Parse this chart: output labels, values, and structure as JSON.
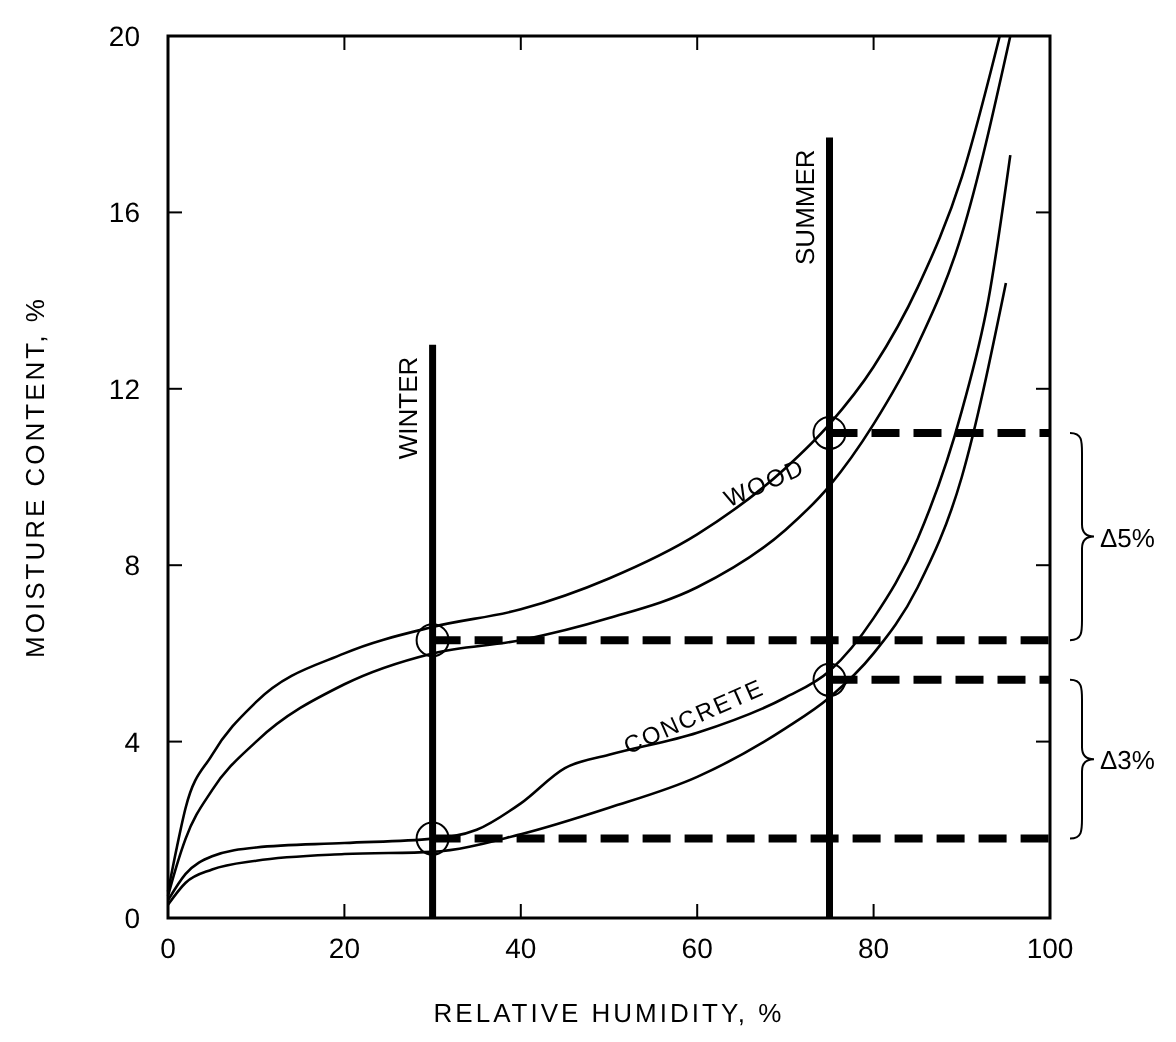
{
  "chart_data": {
    "type": "line",
    "xlabel": "RELATIVE HUMIDITY, %",
    "ylabel": "MOISTURE CONTENT, %",
    "xlim": [
      0,
      100
    ],
    "ylim": [
      0,
      20
    ],
    "xticks": [
      0,
      20,
      40,
      60,
      80,
      100
    ],
    "yticks": [
      0,
      4,
      8,
      12,
      16,
      20
    ],
    "grid": false,
    "series": [
      {
        "color": "#000000",
        "x": [
          0,
          1,
          2,
          5,
          10,
          20,
          30,
          40,
          50,
          60,
          70,
          75,
          80,
          85,
          90,
          94.3
        ],
        "values": [
          0.6,
          1.6,
          2.5,
          3.7,
          4.9,
          6.0,
          6.6,
          7.0,
          7.7,
          8.7,
          10.2,
          11.2,
          12.5,
          14.3,
          16.8,
          20
        ]
      },
      {
        "color": "#000000",
        "x": [
          0,
          1,
          2,
          5,
          10,
          20,
          30,
          40,
          50,
          60,
          70,
          75,
          80,
          85,
          90,
          95.5
        ],
        "values": [
          0.5,
          1.2,
          1.8,
          2.9,
          4.0,
          5.3,
          6.0,
          6.3,
          6.8,
          7.5,
          8.8,
          9.8,
          11.2,
          13.0,
          15.5,
          20
        ]
      },
      {
        "color": "#000000",
        "x": [
          0,
          2,
          5,
          10,
          20,
          30,
          35,
          40,
          45,
          50,
          60,
          70,
          75,
          80,
          85,
          90,
          93,
          95.5
        ],
        "values": [
          0.4,
          1.0,
          1.4,
          1.6,
          1.7,
          1.8,
          2.0,
          2.6,
          3.4,
          3.7,
          4.2,
          5.0,
          5.6,
          6.8,
          8.6,
          11.5,
          14.0,
          17.3
        ]
      },
      {
        "color": "#000000",
        "x": [
          0,
          2,
          5,
          10,
          20,
          30,
          40,
          50,
          60,
          70,
          75,
          80,
          85,
          90,
          95
        ],
        "values": [
          0.3,
          0.8,
          1.1,
          1.3,
          1.45,
          1.5,
          1.9,
          2.5,
          3.2,
          4.3,
          5.0,
          6.0,
          7.5,
          10.0,
          14.4
        ]
      },
      {
        "name": "WINTER",
        "color": "#000000",
        "x": [
          30,
          30
        ],
        "values": [
          0,
          13
        ]
      },
      {
        "name": "SUMMER",
        "color": "#000000",
        "x": [
          75,
          75
        ],
        "values": [
          0,
          17.7
        ]
      },
      {
        "color": "#000000",
        "line_style": "dashed",
        "x": [
          75,
          100
        ],
        "values": [
          11,
          11
        ]
      },
      {
        "color": "#000000",
        "line_style": "dashed",
        "x": [
          30,
          100
        ],
        "values": [
          6.3,
          6.3
        ]
      },
      {
        "color": "#000000",
        "line_style": "dashed",
        "x": [
          75,
          100
        ],
        "values": [
          5.4,
          5.4
        ]
      },
      {
        "color": "#000000",
        "line_style": "dashed",
        "x": [
          30,
          100
        ],
        "values": [
          1.8,
          1.8
        ]
      },
      {
        "type": "scatter",
        "marker": "circle",
        "color": "#000000",
        "x": [
          30,
          75,
          30,
          75
        ],
        "values": [
          6.3,
          11,
          1.8,
          5.4
        ]
      }
    ],
    "annotations": [
      {
        "text": "WOOD",
        "x": 68,
        "y": 9.7
      },
      {
        "text": "CONCRETE",
        "x": 60,
        "y": 4.4
      },
      "Δ5%",
      "Δ3%"
    ]
  }
}
